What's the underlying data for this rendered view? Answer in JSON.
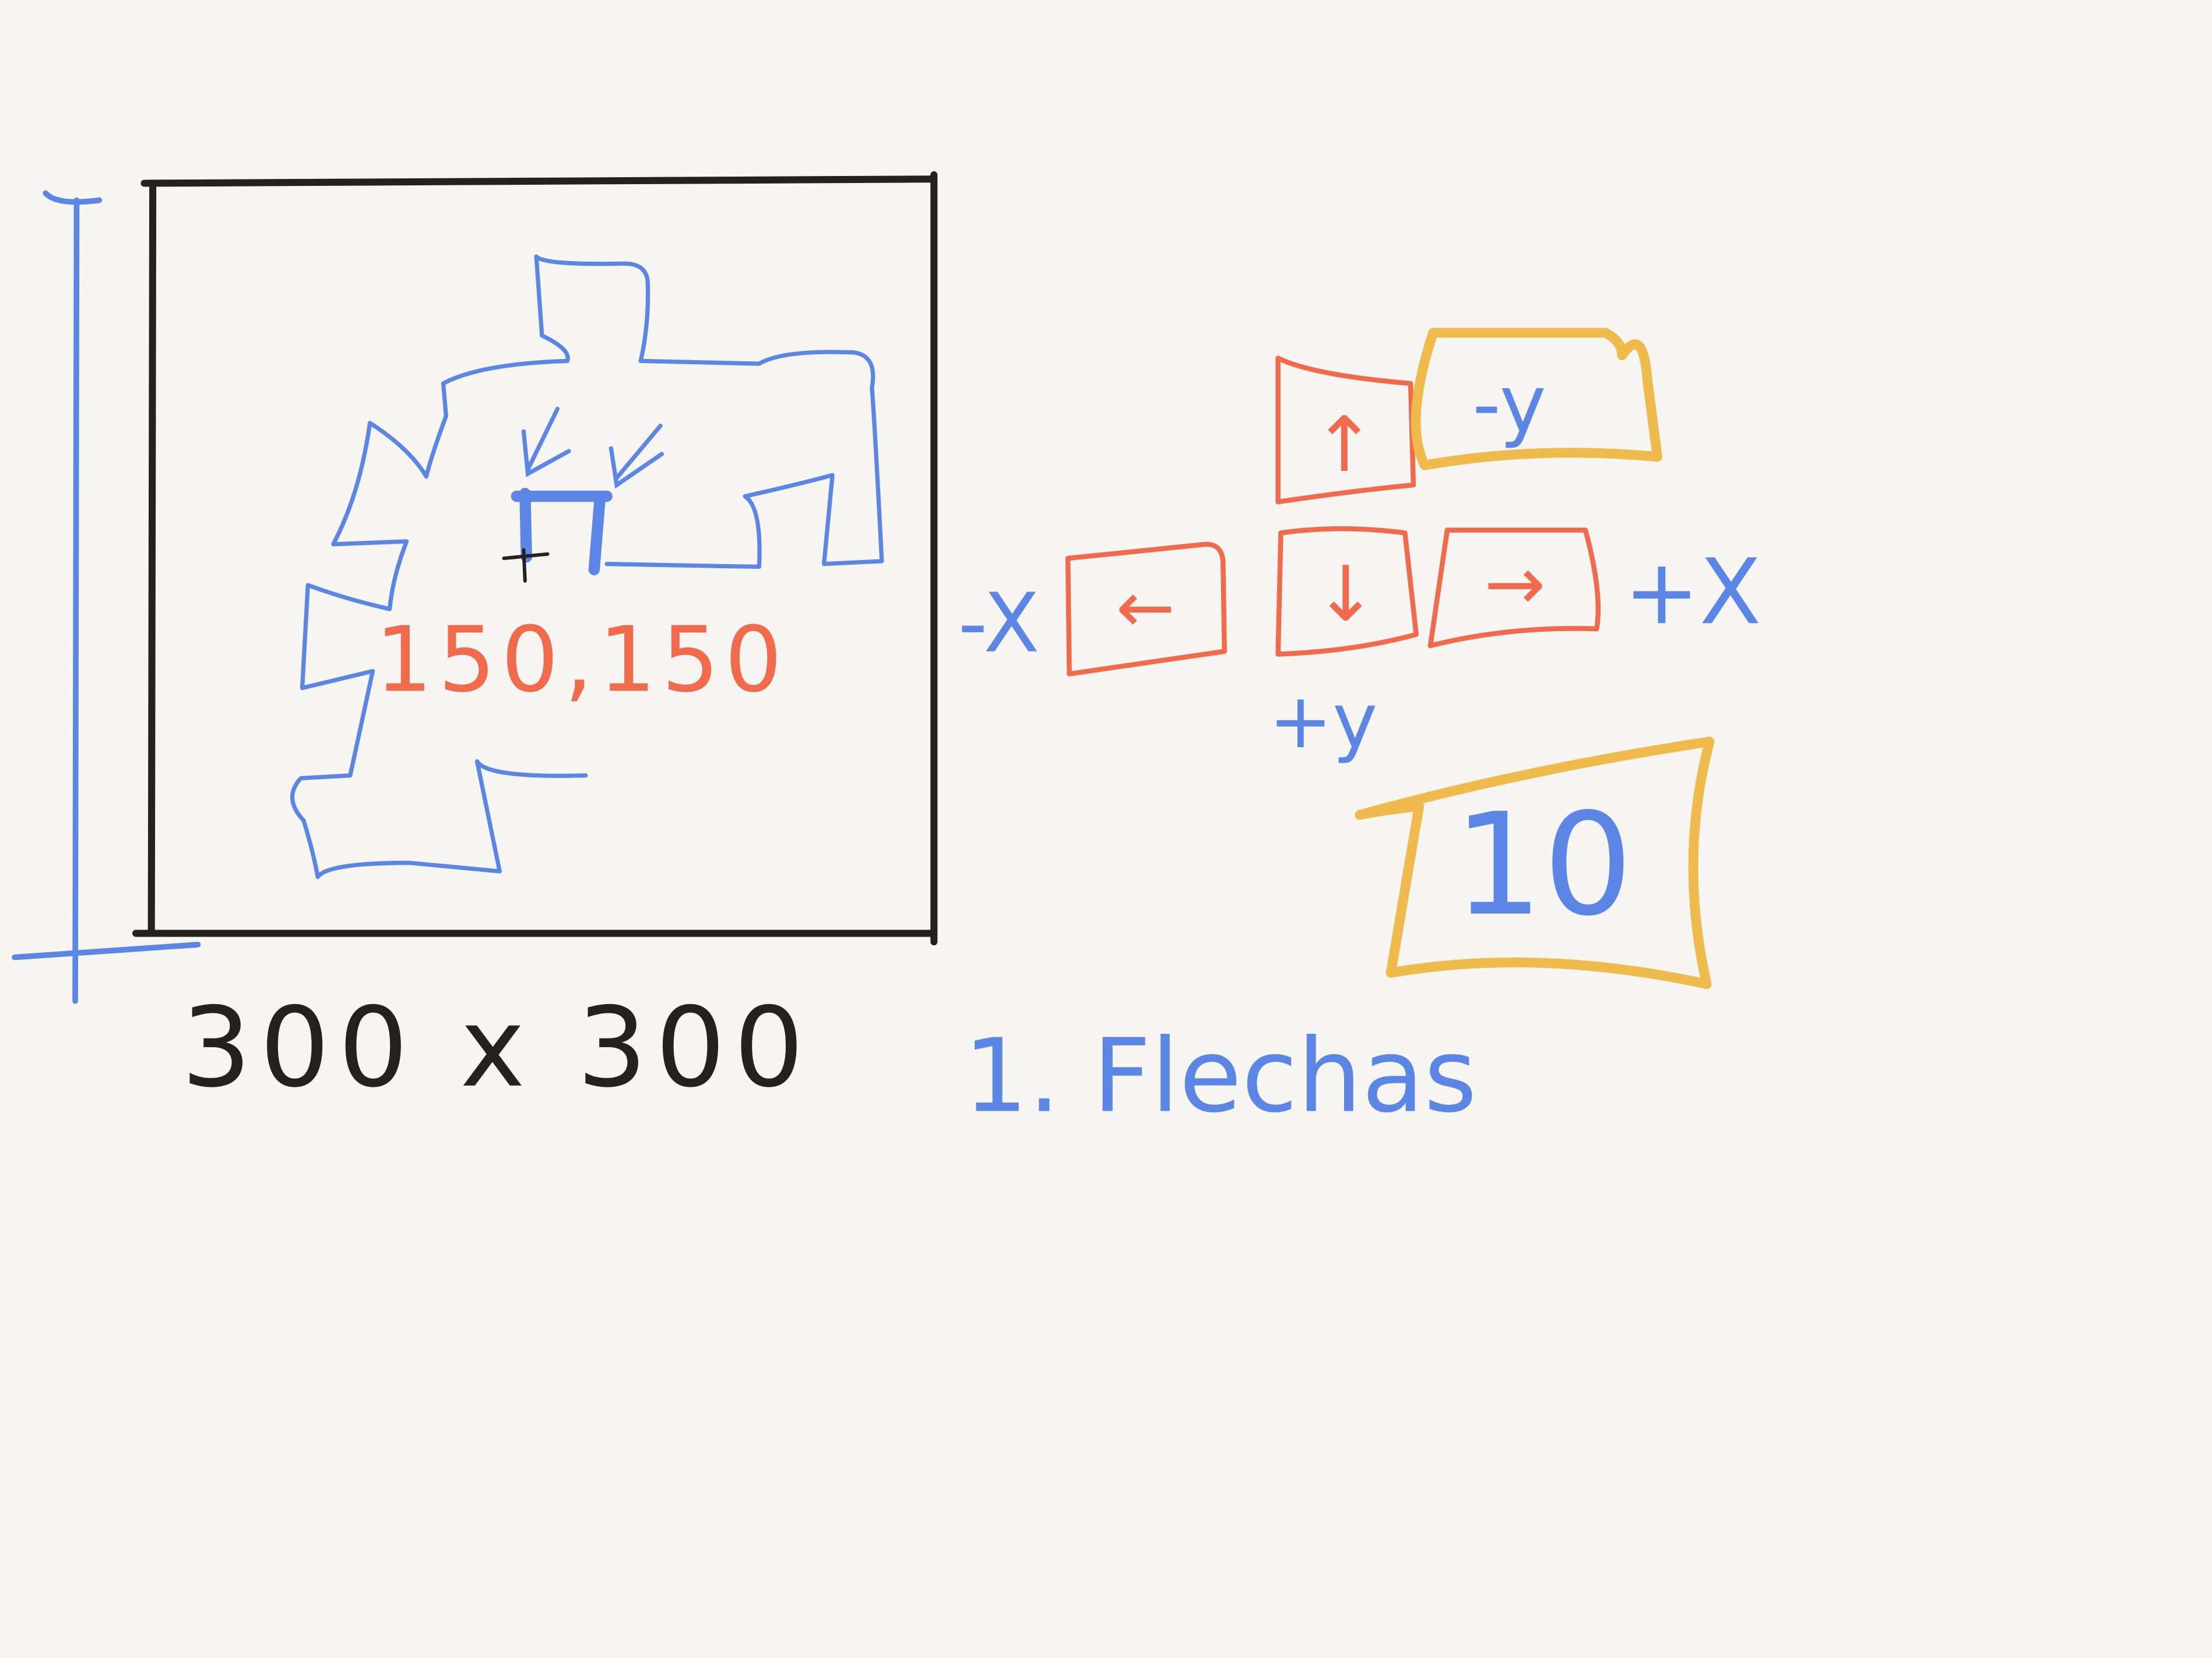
{
  "canvas_label": "300 x 300",
  "start_coordinates": "150,150",
  "axis_labels": {
    "minus_x": "-X",
    "plus_x": "+X",
    "minus_y": "-y",
    "plus_y": "+y"
  },
  "step_value": "10",
  "caption": "1. Flechas",
  "arrow_keys": {
    "up": "↑",
    "left": "←",
    "down": "↓",
    "right": "→"
  },
  "colors": {
    "background": "#f6f5f1",
    "ink_black": "#232220",
    "ink_blue": "#5b86e6",
    "ink_orange": "#f06a4b",
    "ink_yellow": "#f0bb4d"
  }
}
